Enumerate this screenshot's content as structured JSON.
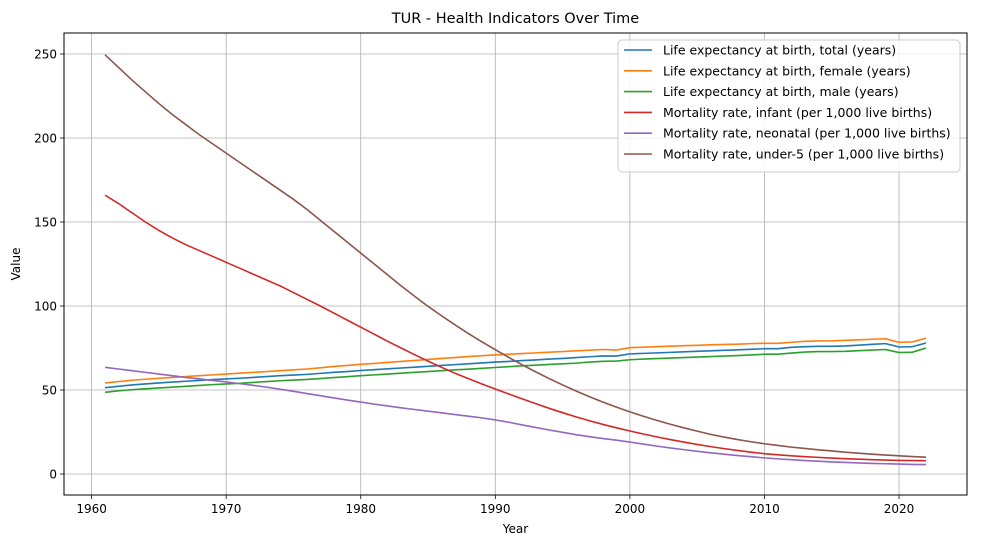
{
  "chart_data": {
    "type": "line",
    "title": "TUR - Health Indicators Over Time",
    "xlabel": "Year",
    "ylabel": "Value",
    "xlim": [
      1957.95,
      2025.05
    ],
    "ylim": [
      -12.5,
      262.5
    ],
    "xticks": [
      1960,
      1970,
      1980,
      1990,
      2000,
      2010,
      2020
    ],
    "yticks": [
      0,
      50,
      100,
      150,
      200,
      250
    ],
    "grid": true,
    "legend_position": "top-right",
    "x": [
      1961,
      1962,
      1963,
      1964,
      1965,
      1966,
      1967,
      1968,
      1969,
      1970,
      1971,
      1972,
      1973,
      1974,
      1975,
      1976,
      1977,
      1978,
      1979,
      1980,
      1981,
      1982,
      1983,
      1984,
      1985,
      1986,
      1987,
      1988,
      1989,
      1990,
      1991,
      1992,
      1993,
      1994,
      1995,
      1996,
      1997,
      1998,
      1999,
      2000,
      2001,
      2002,
      2003,
      2004,
      2005,
      2006,
      2007,
      2008,
      2009,
      2010,
      2011,
      2012,
      2013,
      2014,
      2015,
      2016,
      2017,
      2018,
      2019,
      2020,
      2021,
      2022
    ],
    "series": [
      {
        "name": "Life expectancy at birth, total (years)",
        "color": "#1f77b4",
        "values": [
          51.4,
          52.2,
          53.0,
          53.6,
          54.2,
          54.7,
          55.2,
          55.7,
          56.2,
          56.6,
          57.0,
          57.5,
          58.0,
          58.5,
          58.9,
          59.3,
          59.9,
          60.5,
          61.0,
          61.6,
          62.1,
          62.6,
          63.1,
          63.6,
          64.1,
          64.6,
          65.1,
          65.6,
          66.1,
          66.6,
          67.0,
          67.5,
          67.9,
          68.4,
          68.8,
          69.3,
          69.8,
          70.3,
          70.2,
          71.5,
          71.8,
          72.1,
          72.4,
          72.7,
          73.0,
          73.3,
          73.6,
          73.9,
          74.2,
          74.6,
          74.6,
          75.4,
          75.8,
          76.0,
          76.0,
          76.2,
          76.7,
          77.2,
          77.6,
          75.6,
          75.8,
          78.0
        ]
      },
      {
        "name": "Life expectancy at birth, female (years)",
        "color": "#ff7f0e",
        "values": [
          54.2,
          55.0,
          55.8,
          56.4,
          57.0,
          57.5,
          58.0,
          58.5,
          59.0,
          59.5,
          60.0,
          60.5,
          61.0,
          61.5,
          62.0,
          62.5,
          63.2,
          64.0,
          64.6,
          65.3,
          65.8,
          66.4,
          67.0,
          67.6,
          68.2,
          68.8,
          69.3,
          69.9,
          70.4,
          70.9,
          71.3,
          71.7,
          72.1,
          72.5,
          72.9,
          73.3,
          73.7,
          74.1,
          73.8,
          75.2,
          75.5,
          75.8,
          76.1,
          76.4,
          76.6,
          76.9,
          77.1,
          77.3,
          77.6,
          77.8,
          77.8,
          78.4,
          79.0,
          79.2,
          79.3,
          79.6,
          79.9,
          80.2,
          80.5,
          78.4,
          78.6,
          80.9
        ]
      },
      {
        "name": "Life expectancy at birth, male (years)",
        "color": "#2ca02c",
        "values": [
          48.6,
          49.5,
          50.2,
          50.7,
          51.2,
          51.7,
          52.2,
          52.7,
          53.2,
          53.6,
          54.0,
          54.5,
          55.0,
          55.5,
          55.9,
          56.3,
          56.8,
          57.4,
          57.9,
          58.5,
          59.0,
          59.5,
          60.0,
          60.5,
          61.0,
          61.5,
          62.0,
          62.4,
          62.9,
          63.4,
          63.9,
          64.4,
          64.8,
          65.2,
          65.6,
          66.0,
          66.6,
          67.1,
          67.2,
          68.0,
          68.4,
          68.7,
          69.0,
          69.3,
          69.6,
          69.9,
          70.2,
          70.5,
          70.9,
          71.3,
          71.3,
          72.0,
          72.6,
          72.9,
          72.9,
          73.0,
          73.4,
          73.8,
          74.1,
          72.3,
          72.5,
          75.0
        ]
      },
      {
        "name": "Mortality rate, infant (per 1,000 live births)",
        "color": "#d62728",
        "values": [
          166.0,
          161.0,
          155.5,
          150.0,
          145.0,
          140.5,
          136.5,
          133.0,
          129.5,
          126.0,
          122.5,
          119.0,
          115.5,
          112.0,
          108.0,
          104.0,
          100.0,
          95.8,
          91.6,
          87.4,
          83.2,
          79.0,
          75.0,
          71.0,
          67.2,
          63.5,
          60.0,
          56.8,
          53.6,
          50.6,
          47.6,
          44.7,
          41.9,
          39.1,
          36.5,
          34.0,
          31.7,
          29.5,
          27.5,
          25.6,
          23.8,
          22.1,
          20.5,
          19.0,
          17.6,
          16.3,
          15.1,
          14.0,
          13.0,
          12.1,
          11.4,
          10.8,
          10.3,
          9.9,
          9.5,
          9.1,
          8.8,
          8.5,
          8.3,
          8.1,
          8.0,
          7.9
        ]
      },
      {
        "name": "Mortality rate, neonatal (per 1,000 live births)",
        "color": "#9467bd",
        "values": [
          63.5,
          62.5,
          61.5,
          60.5,
          59.5,
          58.5,
          57.5,
          56.6,
          55.7,
          54.8,
          53.8,
          52.8,
          51.7,
          50.5,
          49.2,
          47.9,
          46.6,
          45.3,
          44.0,
          42.8,
          41.6,
          40.5,
          39.4,
          38.4,
          37.4,
          36.4,
          35.4,
          34.4,
          33.4,
          32.2,
          30.8,
          29.2,
          27.7,
          26.2,
          24.8,
          23.4,
          22.2,
          21.1,
          20.1,
          19.0,
          17.8,
          16.6,
          15.5,
          14.5,
          13.5,
          12.6,
          11.8,
          11.0,
          10.3,
          9.6,
          9.0,
          8.5,
          8.0,
          7.6,
          7.2,
          6.9,
          6.6,
          6.3,
          6.1,
          5.9,
          5.7,
          5.6
        ]
      },
      {
        "name": "Mortality rate, under-5 (per 1,000 live births)",
        "color": "#8c564b",
        "values": [
          249.5,
          242.0,
          234.5,
          227.5,
          220.5,
          214.0,
          208.0,
          202.0,
          196.5,
          191.0,
          185.5,
          180.0,
          174.5,
          169.0,
          163.5,
          157.5,
          151.0,
          144.5,
          138.0,
          131.5,
          125.0,
          118.5,
          112.0,
          105.8,
          99.8,
          94.2,
          88.8,
          83.6,
          78.7,
          74.0,
          69.4,
          65.0,
          60.8,
          56.8,
          53.0,
          49.4,
          46.0,
          42.8,
          39.8,
          37.0,
          34.4,
          31.9,
          29.6,
          27.5,
          25.5,
          23.6,
          22.0,
          20.5,
          19.2,
          18.0,
          17.0,
          16.0,
          15.2,
          14.4,
          13.7,
          13.0,
          12.4,
          11.8,
          11.3,
          10.8,
          10.4,
          10.0
        ]
      }
    ]
  }
}
